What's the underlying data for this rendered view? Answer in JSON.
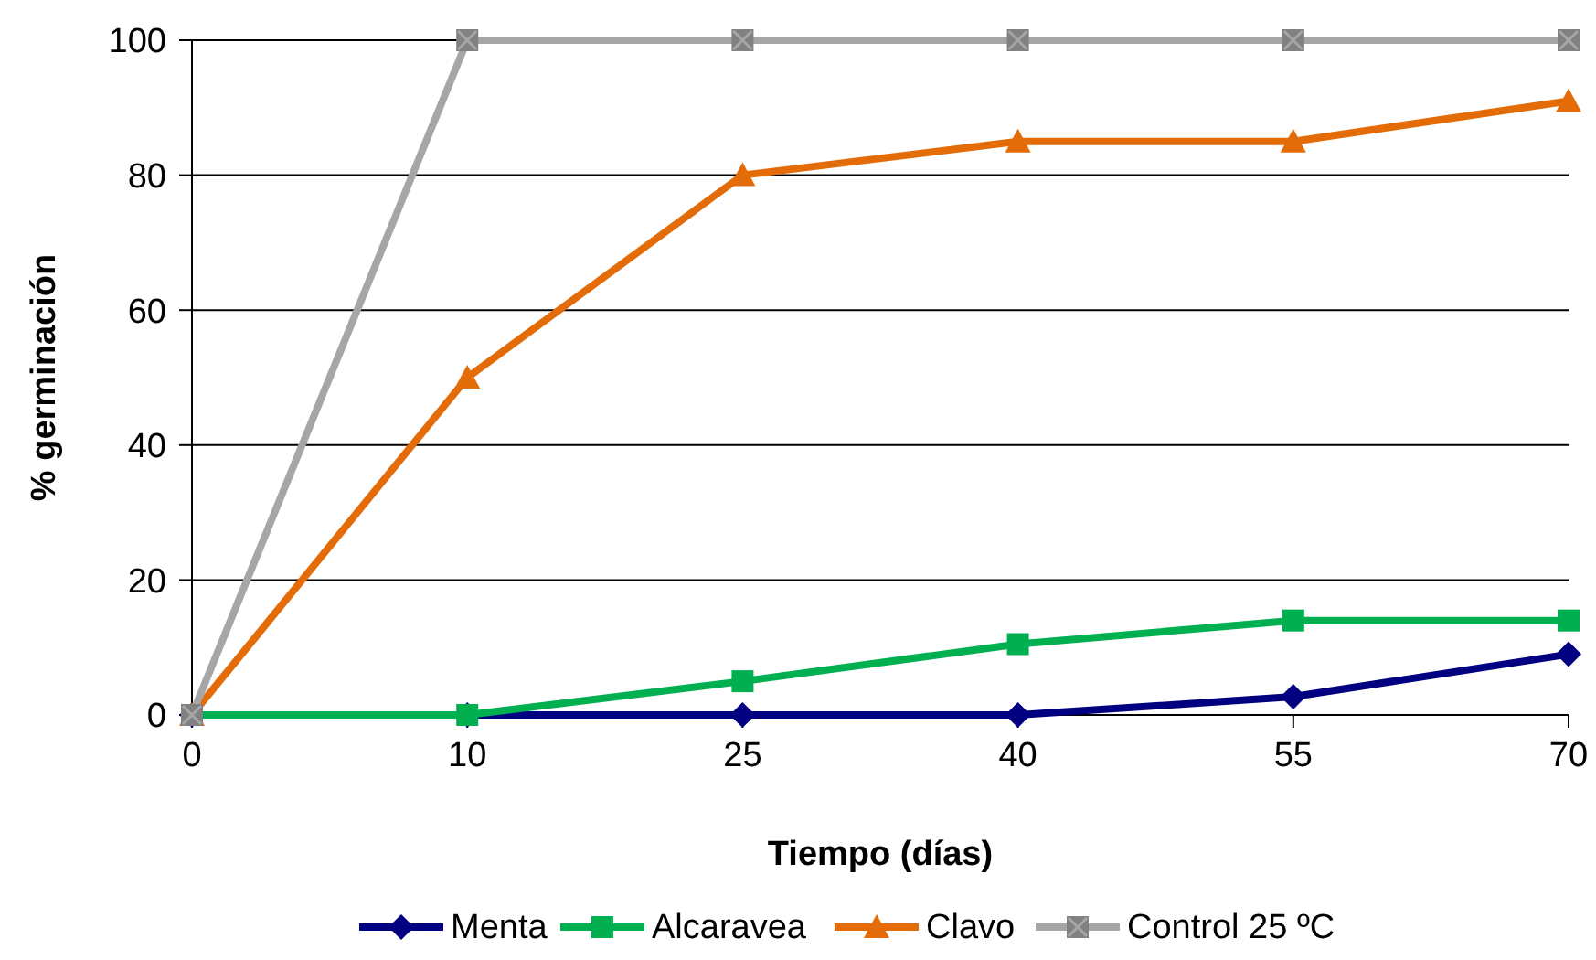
{
  "chart_data": {
    "type": "line",
    "xlabel": "Tiempo (días)",
    "ylabel": "% germinación",
    "categories": [
      "0",
      "10",
      "25",
      "40",
      "55",
      "70"
    ],
    "series": [
      {
        "name": "Menta",
        "color": "#000080",
        "marker": "diamond",
        "values": [
          0,
          0,
          0,
          0,
          2.7,
          9
        ]
      },
      {
        "name": "Alcaravea",
        "color": "#00b050",
        "marker": "square",
        "values": [
          0,
          0,
          5,
          10.5,
          14,
          14
        ]
      },
      {
        "name": "Clavo",
        "color": "#e36c09",
        "marker": "triangle",
        "values": [
          0,
          50,
          80,
          85,
          85,
          91
        ]
      },
      {
        "name": "Control 25 ºC",
        "color": "#a6a6a6",
        "marker": "cross",
        "values": [
          0,
          100,
          100,
          100,
          100,
          100
        ]
      }
    ],
    "ylim": [
      0,
      100
    ],
    "yticks": [
      0,
      20,
      40,
      60,
      80,
      100
    ],
    "grid": "y",
    "legend": "bottom"
  }
}
